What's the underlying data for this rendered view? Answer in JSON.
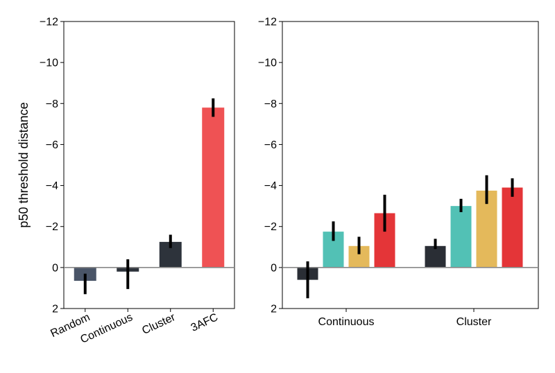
{
  "chart_data": [
    {
      "type": "bar",
      "ylabel": "p50 threshold distance",
      "ylim": [
        2,
        -12
      ],
      "yticks": [
        "−12",
        "−10",
        "−8",
        "−6",
        "−4",
        "−2",
        "0",
        "2"
      ],
      "ytick_values": [
        -12,
        -10,
        -8,
        -6,
        -4,
        -2,
        0,
        2
      ],
      "zero_line": true,
      "categories": [
        "Random",
        "Continuous",
        "Cluster",
        "3AFC"
      ],
      "values": [
        0.65,
        0.2,
        -1.25,
        -7.8
      ],
      "err_low": [
        0.3,
        1.05,
        -0.95,
        -7.35
      ],
      "err_high": [
        1.3,
        -0.4,
        -1.6,
        -8.25
      ],
      "colors": [
        "#4a5568",
        "#2d333b",
        "#2d333b",
        "#ef5254"
      ]
    },
    {
      "type": "bar",
      "ylim": [
        2,
        -12
      ],
      "yticks": [
        "−12",
        "−10",
        "−8",
        "−6",
        "−4",
        "−2",
        "0",
        "2"
      ],
      "ytick_values": [
        -12,
        -10,
        -8,
        -6,
        -4,
        -2,
        0,
        2
      ],
      "zero_line": true,
      "categories": [
        "Continuous",
        "Cluster"
      ],
      "series": [
        {
          "values": [
            0.6,
            -1.05
          ],
          "err_low": [
            1.5,
            -0.9
          ],
          "err_high": [
            -0.3,
            -1.4
          ],
          "color": "#2a2e35"
        },
        {
          "values": [
            -1.75,
            -3.0
          ],
          "err_low": [
            -1.3,
            -2.7
          ],
          "err_high": [
            -2.25,
            -3.35
          ],
          "color": "#52c1b5"
        },
        {
          "values": [
            -1.05,
            -3.75
          ],
          "err_low": [
            -0.65,
            -3.1
          ],
          "err_high": [
            -1.5,
            -4.5
          ],
          "color": "#e4b95b"
        },
        {
          "values": [
            -2.65,
            -3.9
          ],
          "err_low": [
            -1.75,
            -3.45
          ],
          "err_high": [
            -3.55,
            -4.35
          ],
          "color": "#e43538"
        }
      ]
    }
  ]
}
